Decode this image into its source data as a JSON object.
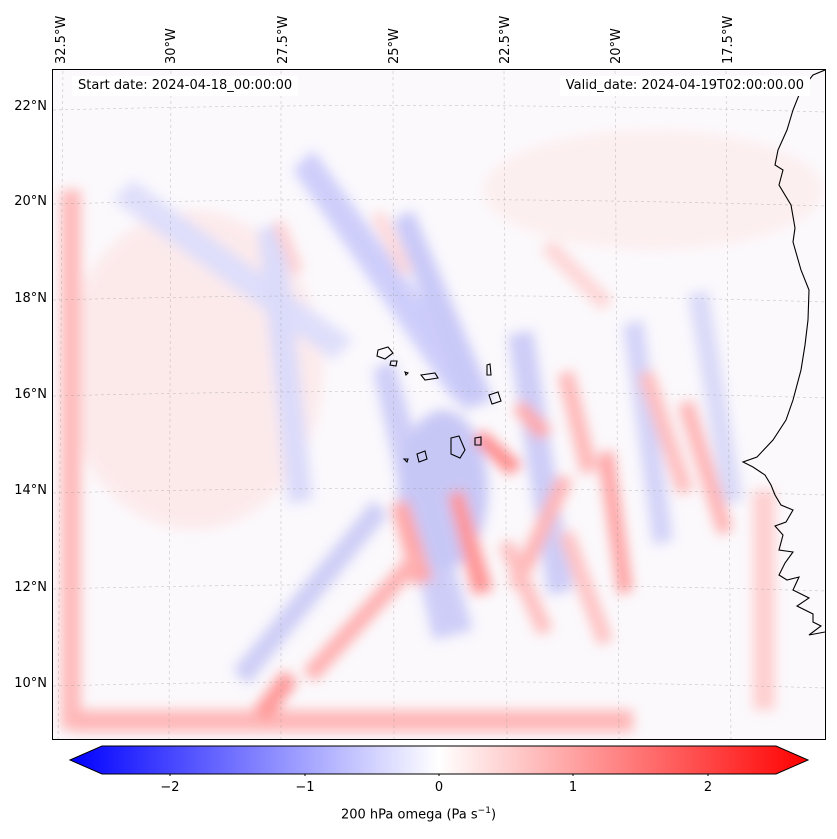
{
  "map": {
    "start_date": "Start date: 2024-04-18_00:00:00",
    "valid_date": "Valid_date: 2024-04-19T02:00:00.00",
    "lon_labels": [
      "32.5°W",
      "30°W",
      "27.5°W",
      "25°W",
      "22.5°W",
      "20°W",
      "17.5°W"
    ],
    "lat_labels": [
      "22°N",
      "20°N",
      "18°N",
      "16°N",
      "14°N",
      "12°N",
      "10°N"
    ],
    "gridlines": true,
    "field": "200 hPa omega",
    "coastline_color": "#000000"
  },
  "colorbar": {
    "ticks": [
      "−2",
      "−1",
      "0",
      "1",
      "2"
    ],
    "label_main": "200 hPa omega (Pa s",
    "label_sup": "−1",
    "label_close": ")",
    "range": [
      -2.7,
      2.7
    ],
    "low_color": "#0000ff",
    "mid_color": "#ffffff",
    "high_color": "#ff0000",
    "extend": "both"
  }
}
